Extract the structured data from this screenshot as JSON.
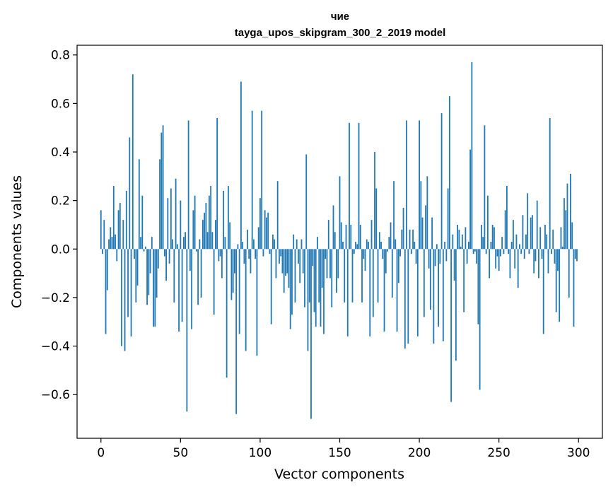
{
  "chart_data": {
    "type": "bar",
    "title": "чие",
    "subtitle": "tayga_upos_skipgram_300_2_2019 model",
    "xlabel": "Vector components",
    "ylabel": "Components values",
    "xlim": [
      -15,
      315
    ],
    "ylim": [
      -0.78,
      0.84
    ],
    "xticks": [
      0,
      50,
      100,
      150,
      200,
      250,
      300
    ],
    "yticks": [
      -0.6,
      -0.4,
      -0.2,
      0.0,
      0.2,
      0.4,
      0.6,
      0.8
    ],
    "ytick_labels": [
      "−0.6",
      "−0.4",
      "−0.2",
      "0.0",
      "0.2",
      "0.4",
      "0.6",
      "0.8"
    ],
    "bar_color": "#1f77b4",
    "values": [
      0.16,
      -0.02,
      0.12,
      -0.35,
      -0.17,
      0.04,
      0.09,
      0.05,
      0.26,
      0.06,
      -0.05,
      0.16,
      0.19,
      -0.4,
      0.12,
      -0.42,
      0.24,
      -0.28,
      0.46,
      -0.36,
      0.72,
      -0.04,
      -0.22,
      -0.15,
      0.37,
      0.05,
      0.22,
      -0.01,
      0.01,
      -0.23,
      -0.19,
      -0.1,
      0.05,
      -0.32,
      -0.32,
      -0.2,
      -0.08,
      0.37,
      0.48,
      0.51,
      -0.03,
      -0.13,
      0.21,
      -0.06,
      0.25,
      0.04,
      -0.22,
      0.29,
      0.02,
      -0.34,
      0.2,
      -0.3,
      0.05,
      0.07,
      -0.67,
      0.53,
      -0.09,
      -0.33,
      0.16,
      0.22,
      -0.01,
      -0.23,
      0.04,
      -0.2,
      0.12,
      0.15,
      0.19,
      0.07,
      0.22,
      0.26,
      0.07,
      -0.27,
      0.12,
      0.54,
      -0.05,
      -0.03,
      -0.12,
      0.24,
      0.05,
      -0.53,
      0.26,
      0.11,
      -0.21,
      -0.18,
      -0.1,
      -0.68,
      0.02,
      -0.35,
      0.69,
      0.03,
      -0.06,
      -0.42,
      0.08,
      -0.04,
      -0.1,
      0.57,
      0.04,
      -0.04,
      -0.44,
      0.09,
      0.21,
      0.57,
      -0.03,
      0.16,
      0.13,
      0.15,
      -0.02,
      -0.31,
      0.06,
      0.04,
      -0.12,
      0.28,
      -0.06,
      -0.03,
      -0.1,
      -0.18,
      -0.11,
      -0.1,
      -0.16,
      -0.33,
      -0.27,
      0.06,
      -0.22,
      0.04,
      -0.06,
      -0.14,
      0.04,
      -0.1,
      -0.24,
      0.39,
      -0.42,
      -0.22,
      -0.7,
      -0.07,
      -0.26,
      -0.32,
      0.05,
      -0.22,
      -0.32,
      -0.16,
      -0.35,
      -0.04,
      -0.12,
      0.12,
      -0.12,
      -0.24,
      0.18,
      0.07,
      -0.18,
      -0.12,
      0.3,
      0.11,
      0.03,
      -0.22,
      0.1,
      -0.36,
      0.52,
      0.1,
      -0.22,
      -0.02,
      0.03,
      0.02,
      0.52,
      0.1,
      -0.22,
      -0.04,
      -0.09,
      0.04,
      0.03,
      -0.36,
      0.12,
      -0.28,
      0.4,
      0.25,
      -0.22,
      0.07,
      0.03,
      -0.04,
      -0.34,
      -0.1,
      -0.01,
      0.05,
      0.11,
      -0.2,
      0.28,
      0.04,
      -0.34,
      -0.14,
      -0.03,
      0.08,
      0.17,
      -0.41,
      0.53,
      -0.39,
      0.08,
      -0.02,
      0.08,
      0.03,
      -0.06,
      -0.36,
      0.53,
      0.28,
      0.13,
      -0.28,
      0.18,
      0.3,
      -0.08,
      -0.25,
      0.13,
      -0.39,
      -0.07,
      0.02,
      -0.32,
      -0.06,
      0.56,
      -0.38,
      0.03,
      -0.05,
      0.25,
      0.63,
      -0.63,
      0.06,
      -0.13,
      -0.46,
      0.1,
      0.08,
      0.01,
      0.06,
      -0.26,
      0.09,
      -0.06,
      0.03,
      0.41,
      0.77,
      -0.02,
      -0.01,
      -0.06,
      -0.31,
      -0.58,
      0.1,
      0.05,
      0.51,
      -0.02,
      0.22,
      -0.12,
      0.03,
      0.1,
      0.09,
      -0.08,
      -0.03,
      -0.09,
      -0.03,
      0.05,
      -0.02,
      0.16,
      0.26,
      -0.02,
      -0.12,
      0.03,
      0.12,
      -0.08,
      0.06,
      -0.16,
      0.02,
      -0.02,
      0.14,
      -0.04,
      0.06,
      0.23,
      -0.02,
      0.13,
      0.14,
      -0.1,
      -0.05,
      0.2,
      -0.12,
      0.09,
      -0.04,
      -0.35,
      0.1,
      0.06,
      -0.1,
      0.54,
      -0.02,
      0.08,
      -0.06,
      -0.26,
      -0.09,
      -0.3,
      0.09,
      0.01,
      0.21,
      0.16,
      0.27,
      -0.2,
      0.31,
      0.11,
      -0.32,
      -0.04,
      -0.05
    ]
  }
}
